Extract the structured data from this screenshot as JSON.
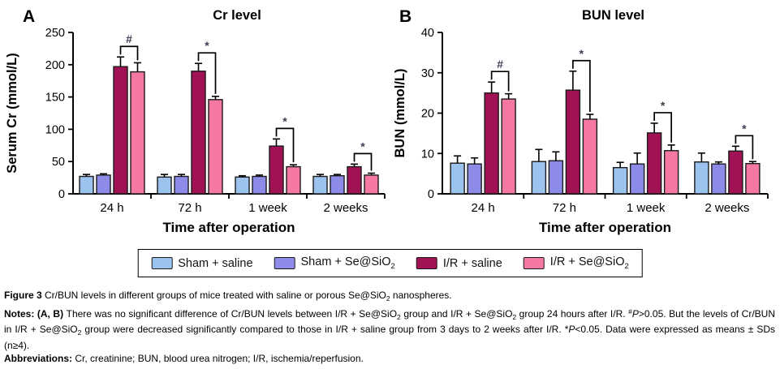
{
  "chart_data": [
    {
      "type": "bar",
      "panel": "A",
      "title": "Cr level",
      "xlabel": "Time after operation",
      "ylabel": "Serum Cr (mmol/L)",
      "ylim": [
        0,
        250
      ],
      "yticks": [
        0,
        50,
        100,
        150,
        200,
        250
      ],
      "grid": "off",
      "categories": [
        "24 h",
        "72 h",
        "1 week",
        "2 weeks"
      ],
      "series": [
        {
          "name": "Sham + saline",
          "color": "#9CC2EE",
          "values": [
            27,
            26,
            26,
            27
          ],
          "errors": [
            3,
            4,
            2,
            3
          ]
        },
        {
          "name": "Sham + Se@SiO2",
          "color": "#8C8CE8",
          "values": [
            29,
            27,
            27,
            28
          ],
          "errors": [
            2,
            3,
            2,
            2
          ]
        },
        {
          "name": "I/R + saline",
          "color": "#A01253",
          "values": [
            197,
            190,
            74,
            42
          ],
          "errors": [
            15,
            12,
            11,
            4
          ]
        },
        {
          "name": "I/R + Se@SiO2",
          "color": "#F478A2",
          "values": [
            189,
            146,
            42,
            29
          ],
          "errors": [
            14,
            5,
            3,
            3
          ]
        }
      ],
      "significance": [
        {
          "group": 0,
          "symbol": "#"
        },
        {
          "group": 1,
          "symbol": "*"
        },
        {
          "group": 2,
          "symbol": "*"
        },
        {
          "group": 3,
          "symbol": "*"
        }
      ]
    },
    {
      "type": "bar",
      "panel": "B",
      "title": "BUN level",
      "xlabel": "Time after operation",
      "ylabel": "BUN (mmol/L)",
      "ylim": [
        0,
        40
      ],
      "yticks": [
        0,
        10,
        20,
        30,
        40
      ],
      "grid": "off",
      "categories": [
        "24 h",
        "72 h",
        "1 week",
        "2 weeks"
      ],
      "series": [
        {
          "name": "Sham + saline",
          "color": "#9CC2EE",
          "values": [
            7.6,
            8.0,
            6.5,
            7.9
          ],
          "errors": [
            1.8,
            3.0,
            1.3,
            2.2
          ]
        },
        {
          "name": "Sham + Se@SiO2",
          "color": "#8C8CE8",
          "values": [
            7.4,
            8.2,
            7.4,
            7.4
          ],
          "errors": [
            1.5,
            2.2,
            2.7,
            0.5
          ]
        },
        {
          "name": "I/R + saline",
          "color": "#A01253",
          "values": [
            25.0,
            25.7,
            15.1,
            10.6
          ],
          "errors": [
            2.7,
            4.7,
            2.4,
            1.2
          ]
        },
        {
          "name": "I/R + Se@SiO2",
          "color": "#F478A2",
          "values": [
            23.5,
            18.5,
            10.7,
            7.5
          ],
          "errors": [
            1.3,
            1.2,
            1.4,
            0.5
          ]
        }
      ],
      "significance": [
        {
          "group": 0,
          "symbol": "#"
        },
        {
          "group": 1,
          "symbol": "*"
        },
        {
          "group": 2,
          "symbol": "*"
        },
        {
          "group": 3,
          "symbol": "*"
        }
      ]
    }
  ],
  "legend": {
    "items": [
      {
        "label": "Sham + saline",
        "sub": ""
      },
      {
        "label": "Sham + Se@SiO",
        "sub": "2"
      },
      {
        "label": "I/R + saline",
        "sub": ""
      },
      {
        "label": "I/R + Se@SiO",
        "sub": "2"
      }
    ]
  },
  "caption": {
    "figure": [
      {
        "t": "Figure 3 ",
        "b": 1
      },
      {
        "t": "Cr/BUN levels in different groups of mice treated with saline or porous Se@SiO"
      },
      {
        "t": "2",
        "v": "sub"
      },
      {
        "t": " nanospheres."
      }
    ],
    "notes": [
      {
        "t": "Notes: (A, B) ",
        "b": 1
      },
      {
        "t": "There was no significant difference of Cr/BUN levels between I/R + Se@SiO"
      },
      {
        "t": "2",
        "v": "sub"
      },
      {
        "t": " group and I/R + Se@SiO"
      },
      {
        "t": "2",
        "v": "sub"
      },
      {
        "t": " group 24 hours after I/R. "
      },
      {
        "t": "#",
        "v": "sup"
      },
      {
        "t": "P",
        "i": 1
      },
      {
        "t": ">0.05. But the levels of Cr/BUN in I/R + Se@SiO"
      },
      {
        "t": "2",
        "v": "sub"
      },
      {
        "t": " group were decreased significantly compared to those in I/R + saline group from 3 days to 2 weeks after I/R. *"
      },
      {
        "t": "P",
        "i": 1
      },
      {
        "t": "<0.05. Data were expressed as means ± SDs (n≥4)."
      }
    ],
    "abbreviations": [
      {
        "t": "Abbreviations: ",
        "b": 1
      },
      {
        "t": "Cr, creatinine; BUN, blood urea nitrogen; I/R, ischemia/reperfusion."
      }
    ]
  },
  "style_colors": {
    "axis": "#000000",
    "bar_stroke": "#1a1a1a",
    "sig_symbol": "#3a3f52",
    "text": "#000000"
  }
}
